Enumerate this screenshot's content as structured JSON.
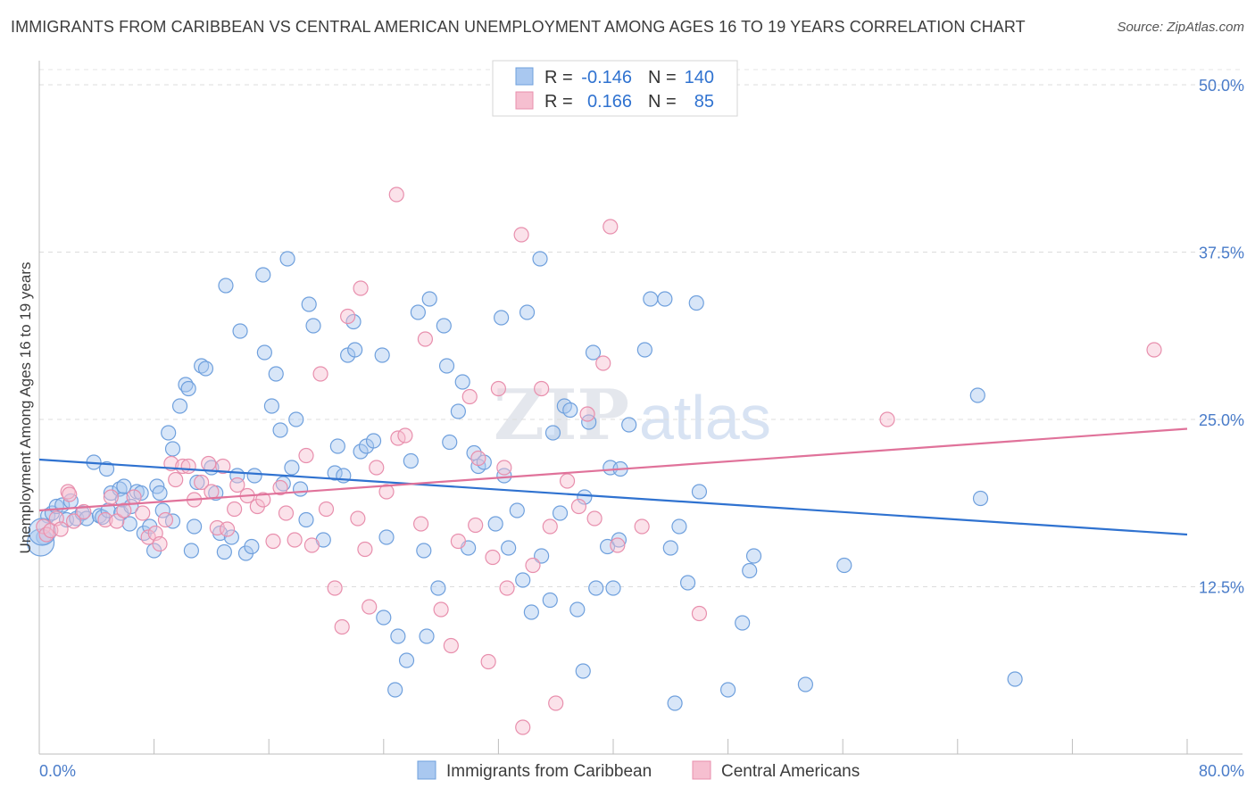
{
  "header": {
    "title": "IMMIGRANTS FROM CARIBBEAN VS CENTRAL AMERICAN UNEMPLOYMENT AMONG AGES 16 TO 19 YEARS CORRELATION CHART",
    "source": "Source: ZipAtlas.com"
  },
  "watermark": {
    "zip": "ZIP",
    "atlas": "atlas"
  },
  "colors": {
    "blue_fill": "#a9c8f0",
    "blue_stroke": "#6fa0dd",
    "blue_line": "#2f72d0",
    "pink_fill": "#f6bfd0",
    "pink_stroke": "#e88fad",
    "pink_line": "#e0729a",
    "tick_text": "#4a7cc9"
  },
  "legend_top": {
    "rows": [
      {
        "r_label": "R =",
        "r_value": "-0.146",
        "n_label": "N =",
        "n_value": "140",
        "color": "blue"
      },
      {
        "r_label": "R =",
        "r_value": "0.166",
        "n_label": "N =",
        "n_value": "85",
        "color": "pink"
      }
    ]
  },
  "legend_bottom": {
    "items": [
      {
        "label": "Immigrants from Caribbean",
        "color": "blue"
      },
      {
        "label": "Central Americans",
        "color": "pink"
      }
    ]
  },
  "chart_data": {
    "type": "scatter",
    "title": "IMMIGRANTS FROM CARIBBEAN VS CENTRAL AMERICAN UNEMPLOYMENT AMONG AGES 16 TO 19 YEARS CORRELATION CHART",
    "xlabel": "",
    "ylabel": "Unemployment Among Ages 16 to 19 years",
    "xlim": [
      0,
      80
    ],
    "ylim": [
      0,
      52
    ],
    "x_tick_labels": [
      "0.0%",
      "80.0%"
    ],
    "y_ticks": [
      12.5,
      25.0,
      37.5,
      50.0
    ],
    "y_tick_labels": [
      "12.5%",
      "25.0%",
      "37.5%",
      "50.0%"
    ],
    "grid": true,
    "series": [
      {
        "name": "Immigrants from Caribbean",
        "color": "#a9c8f0",
        "r": -0.146,
        "n": 140,
        "trend": {
          "x": [
            0,
            80
          ],
          "y": [
            22.0,
            16.4
          ]
        },
        "points": [
          [
            0.3,
            16.2
          ],
          [
            0.6,
            17.8
          ],
          [
            0.9,
            18.0
          ],
          [
            1.2,
            18.5
          ],
          [
            1.6,
            18.6
          ],
          [
            1.9,
            17.5
          ],
          [
            2.2,
            18.9
          ],
          [
            2.6,
            17.6
          ],
          [
            3.0,
            18.0
          ],
          [
            3.3,
            17.6
          ],
          [
            3.8,
            21.8
          ],
          [
            4.2,
            17.8
          ],
          [
            4.4,
            17.7
          ],
          [
            4.7,
            21.3
          ],
          [
            4.8,
            18.2
          ],
          [
            5.0,
            19.5
          ],
          [
            5.7,
            18.0
          ],
          [
            5.6,
            19.8
          ],
          [
            5.8,
            19.0
          ],
          [
            5.9,
            20.0
          ],
          [
            6.3,
            17.2
          ],
          [
            6.4,
            18.5
          ],
          [
            6.8,
            19.6
          ],
          [
            7.1,
            19.5
          ],
          [
            7.3,
            16.5
          ],
          [
            7.7,
            17.0
          ],
          [
            8.0,
            15.2
          ],
          [
            8.2,
            20.0
          ],
          [
            8.4,
            19.5
          ],
          [
            8.6,
            18.2
          ],
          [
            9.0,
            24.0
          ],
          [
            9.3,
            17.4
          ],
          [
            9.3,
            22.8
          ],
          [
            9.8,
            26.0
          ],
          [
            10.2,
            27.6
          ],
          [
            10.4,
            27.3
          ],
          [
            10.6,
            15.2
          ],
          [
            10.8,
            17.0
          ],
          [
            11.0,
            20.3
          ],
          [
            11.3,
            29.0
          ],
          [
            11.6,
            28.8
          ],
          [
            12.0,
            21.4
          ],
          [
            12.3,
            19.5
          ],
          [
            12.6,
            16.5
          ],
          [
            12.9,
            15.1
          ],
          [
            13.0,
            35.0
          ],
          [
            13.4,
            16.2
          ],
          [
            13.8,
            20.8
          ],
          [
            14.0,
            31.6
          ],
          [
            14.4,
            15.0
          ],
          [
            14.8,
            15.5
          ],
          [
            15.0,
            20.8
          ],
          [
            15.6,
            35.8
          ],
          [
            15.7,
            30.0
          ],
          [
            16.2,
            26.0
          ],
          [
            16.5,
            28.4
          ],
          [
            16.8,
            24.2
          ],
          [
            17.0,
            20.2
          ],
          [
            17.3,
            37.0
          ],
          [
            17.6,
            21.4
          ],
          [
            17.9,
            25.0
          ],
          [
            18.2,
            19.8
          ],
          [
            18.6,
            17.5
          ],
          [
            18.8,
            33.6
          ],
          [
            19.1,
            32.0
          ],
          [
            19.8,
            16.0
          ],
          [
            20.6,
            21.0
          ],
          [
            20.8,
            23.0
          ],
          [
            21.2,
            20.8
          ],
          [
            21.5,
            29.8
          ],
          [
            21.9,
            32.3
          ],
          [
            22.0,
            30.2
          ],
          [
            22.4,
            22.6
          ],
          [
            22.8,
            23.0
          ],
          [
            23.3,
            23.4
          ],
          [
            23.9,
            29.8
          ],
          [
            24.0,
            10.2
          ],
          [
            24.2,
            16.2
          ],
          [
            24.8,
            4.8
          ],
          [
            25.0,
            8.8
          ],
          [
            25.6,
            7.0
          ],
          [
            25.9,
            21.9
          ],
          [
            26.4,
            33.0
          ],
          [
            26.8,
            15.2
          ],
          [
            27.0,
            8.8
          ],
          [
            27.2,
            34.0
          ],
          [
            27.8,
            12.4
          ],
          [
            28.2,
            32.0
          ],
          [
            28.4,
            29.0
          ],
          [
            28.6,
            23.3
          ],
          [
            29.2,
            25.6
          ],
          [
            29.5,
            27.8
          ],
          [
            29.9,
            15.4
          ],
          [
            30.3,
            22.5
          ],
          [
            30.6,
            21.5
          ],
          [
            31.0,
            21.8
          ],
          [
            31.8,
            17.2
          ],
          [
            32.2,
            32.6
          ],
          [
            32.4,
            20.8
          ],
          [
            32.7,
            15.4
          ],
          [
            33.3,
            18.2
          ],
          [
            33.7,
            13.0
          ],
          [
            34.0,
            33.0
          ],
          [
            34.3,
            10.6
          ],
          [
            34.9,
            37.0
          ],
          [
            35.0,
            14.8
          ],
          [
            35.8,
            24.0
          ],
          [
            35.6,
            11.5
          ],
          [
            36.3,
            18.0
          ],
          [
            36.6,
            26.0
          ],
          [
            37.0,
            25.7
          ],
          [
            37.5,
            10.8
          ],
          [
            37.9,
            6.2
          ],
          [
            38.0,
            19.2
          ],
          [
            38.3,
            24.8
          ],
          [
            38.6,
            30.0
          ],
          [
            38.8,
            12.4
          ],
          [
            39.6,
            15.5
          ],
          [
            39.8,
            21.4
          ],
          [
            40.0,
            12.4
          ],
          [
            40.4,
            16.0
          ],
          [
            40.5,
            21.3
          ],
          [
            41.1,
            24.6
          ],
          [
            42.2,
            30.2
          ],
          [
            42.6,
            34.0
          ],
          [
            43.6,
            34.0
          ],
          [
            44.0,
            15.4
          ],
          [
            44.3,
            3.8
          ],
          [
            44.6,
            17.0
          ],
          [
            45.2,
            12.8
          ],
          [
            45.8,
            33.7
          ],
          [
            46.0,
            19.6
          ],
          [
            48.0,
            4.8
          ],
          [
            49.0,
            9.8
          ],
          [
            49.5,
            13.7
          ],
          [
            49.8,
            14.8
          ],
          [
            53.4,
            5.2
          ],
          [
            56.1,
            14.1
          ],
          [
            65.4,
            26.8
          ],
          [
            65.6,
            19.1
          ],
          [
            68.0,
            5.6
          ],
          [
            0.1,
            15.8
          ],
          [
            0.2,
            16.6
          ]
        ]
      },
      {
        "name": "Central Americans",
        "color": "#f6bfd0",
        "r": 0.166,
        "n": 85,
        "trend": {
          "x": [
            0,
            80
          ],
          "y": [
            18.2,
            24.3
          ]
        },
        "points": [
          [
            0.3,
            17.0
          ],
          [
            0.5,
            16.4
          ],
          [
            0.8,
            16.7
          ],
          [
            1.2,
            17.6
          ],
          [
            1.5,
            16.8
          ],
          [
            2.0,
            19.6
          ],
          [
            2.4,
            17.4
          ],
          [
            3.1,
            18.1
          ],
          [
            4.6,
            17.5
          ],
          [
            5.0,
            19.2
          ],
          [
            5.4,
            17.4
          ],
          [
            5.9,
            18.2
          ],
          [
            6.6,
            19.2
          ],
          [
            7.2,
            18.0
          ],
          [
            7.6,
            16.2
          ],
          [
            8.1,
            16.5
          ],
          [
            8.4,
            15.7
          ],
          [
            8.8,
            17.5
          ],
          [
            9.2,
            21.7
          ],
          [
            9.5,
            20.5
          ],
          [
            10.0,
            21.5
          ],
          [
            10.4,
            21.5
          ],
          [
            10.8,
            19.0
          ],
          [
            11.3,
            20.3
          ],
          [
            11.8,
            21.7
          ],
          [
            12.0,
            19.6
          ],
          [
            12.4,
            16.9
          ],
          [
            12.8,
            21.5
          ],
          [
            13.1,
            16.8
          ],
          [
            13.6,
            18.3
          ],
          [
            13.8,
            20.1
          ],
          [
            14.5,
            19.3
          ],
          [
            15.2,
            18.5
          ],
          [
            15.6,
            19.0
          ],
          [
            16.3,
            15.9
          ],
          [
            16.8,
            19.9
          ],
          [
            17.2,
            18.0
          ],
          [
            17.8,
            16.0
          ],
          [
            18.6,
            22.3
          ],
          [
            19.0,
            15.6
          ],
          [
            19.6,
            28.4
          ],
          [
            20.0,
            18.3
          ],
          [
            20.6,
            12.4
          ],
          [
            21.1,
            9.5
          ],
          [
            21.5,
            32.7
          ],
          [
            22.2,
            17.6
          ],
          [
            22.4,
            34.8
          ],
          [
            22.7,
            15.3
          ],
          [
            23.0,
            11.0
          ],
          [
            23.5,
            21.4
          ],
          [
            24.2,
            19.6
          ],
          [
            24.9,
            41.8
          ],
          [
            25.0,
            23.6
          ],
          [
            25.5,
            23.8
          ],
          [
            26.6,
            17.2
          ],
          [
            26.9,
            31.0
          ],
          [
            28.0,
            10.8
          ],
          [
            28.7,
            8.1
          ],
          [
            29.2,
            15.9
          ],
          [
            30.0,
            26.7
          ],
          [
            30.4,
            17.1
          ],
          [
            30.6,
            22.1
          ],
          [
            31.3,
            6.9
          ],
          [
            31.6,
            14.7
          ],
          [
            32.0,
            27.3
          ],
          [
            32.4,
            21.4
          ],
          [
            32.6,
            12.4
          ],
          [
            33.6,
            38.8
          ],
          [
            33.7,
            2.0
          ],
          [
            34.4,
            14.1
          ],
          [
            35.0,
            27.3
          ],
          [
            35.6,
            17.0
          ],
          [
            36.0,
            3.8
          ],
          [
            36.8,
            20.4
          ],
          [
            37.6,
            18.5
          ],
          [
            38.2,
            25.4
          ],
          [
            38.7,
            17.6
          ],
          [
            39.3,
            29.2
          ],
          [
            39.8,
            39.4
          ],
          [
            40.3,
            15.6
          ],
          [
            42.0,
            17.0
          ],
          [
            46.0,
            10.5
          ],
          [
            59.1,
            25.0
          ],
          [
            77.7,
            30.2
          ],
          [
            2.1,
            19.4
          ]
        ]
      }
    ]
  }
}
